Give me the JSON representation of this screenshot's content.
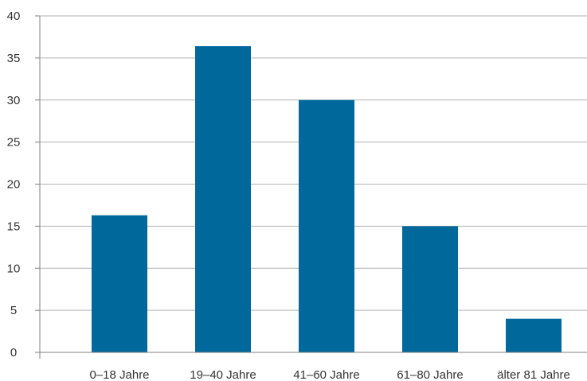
{
  "chart_data": {
    "type": "bar",
    "categories": [
      "0–18 Jahre",
      "19–40 Jahre",
      "41–60 Jahre",
      "61–80 Jahre",
      "älter 81 Jahre"
    ],
    "values": [
      16.3,
      36.4,
      30.0,
      15.0,
      4.0
    ],
    "title": "",
    "xlabel": "",
    "ylabel": "",
    "ylim": [
      0,
      40
    ],
    "yticks": [
      0,
      5,
      10,
      15,
      20,
      25,
      30,
      35,
      40
    ],
    "grid": true,
    "legend": "none",
    "bar_color": "#00689a",
    "grid_color": "#b3b3b3",
    "axis_color": "#808080"
  }
}
